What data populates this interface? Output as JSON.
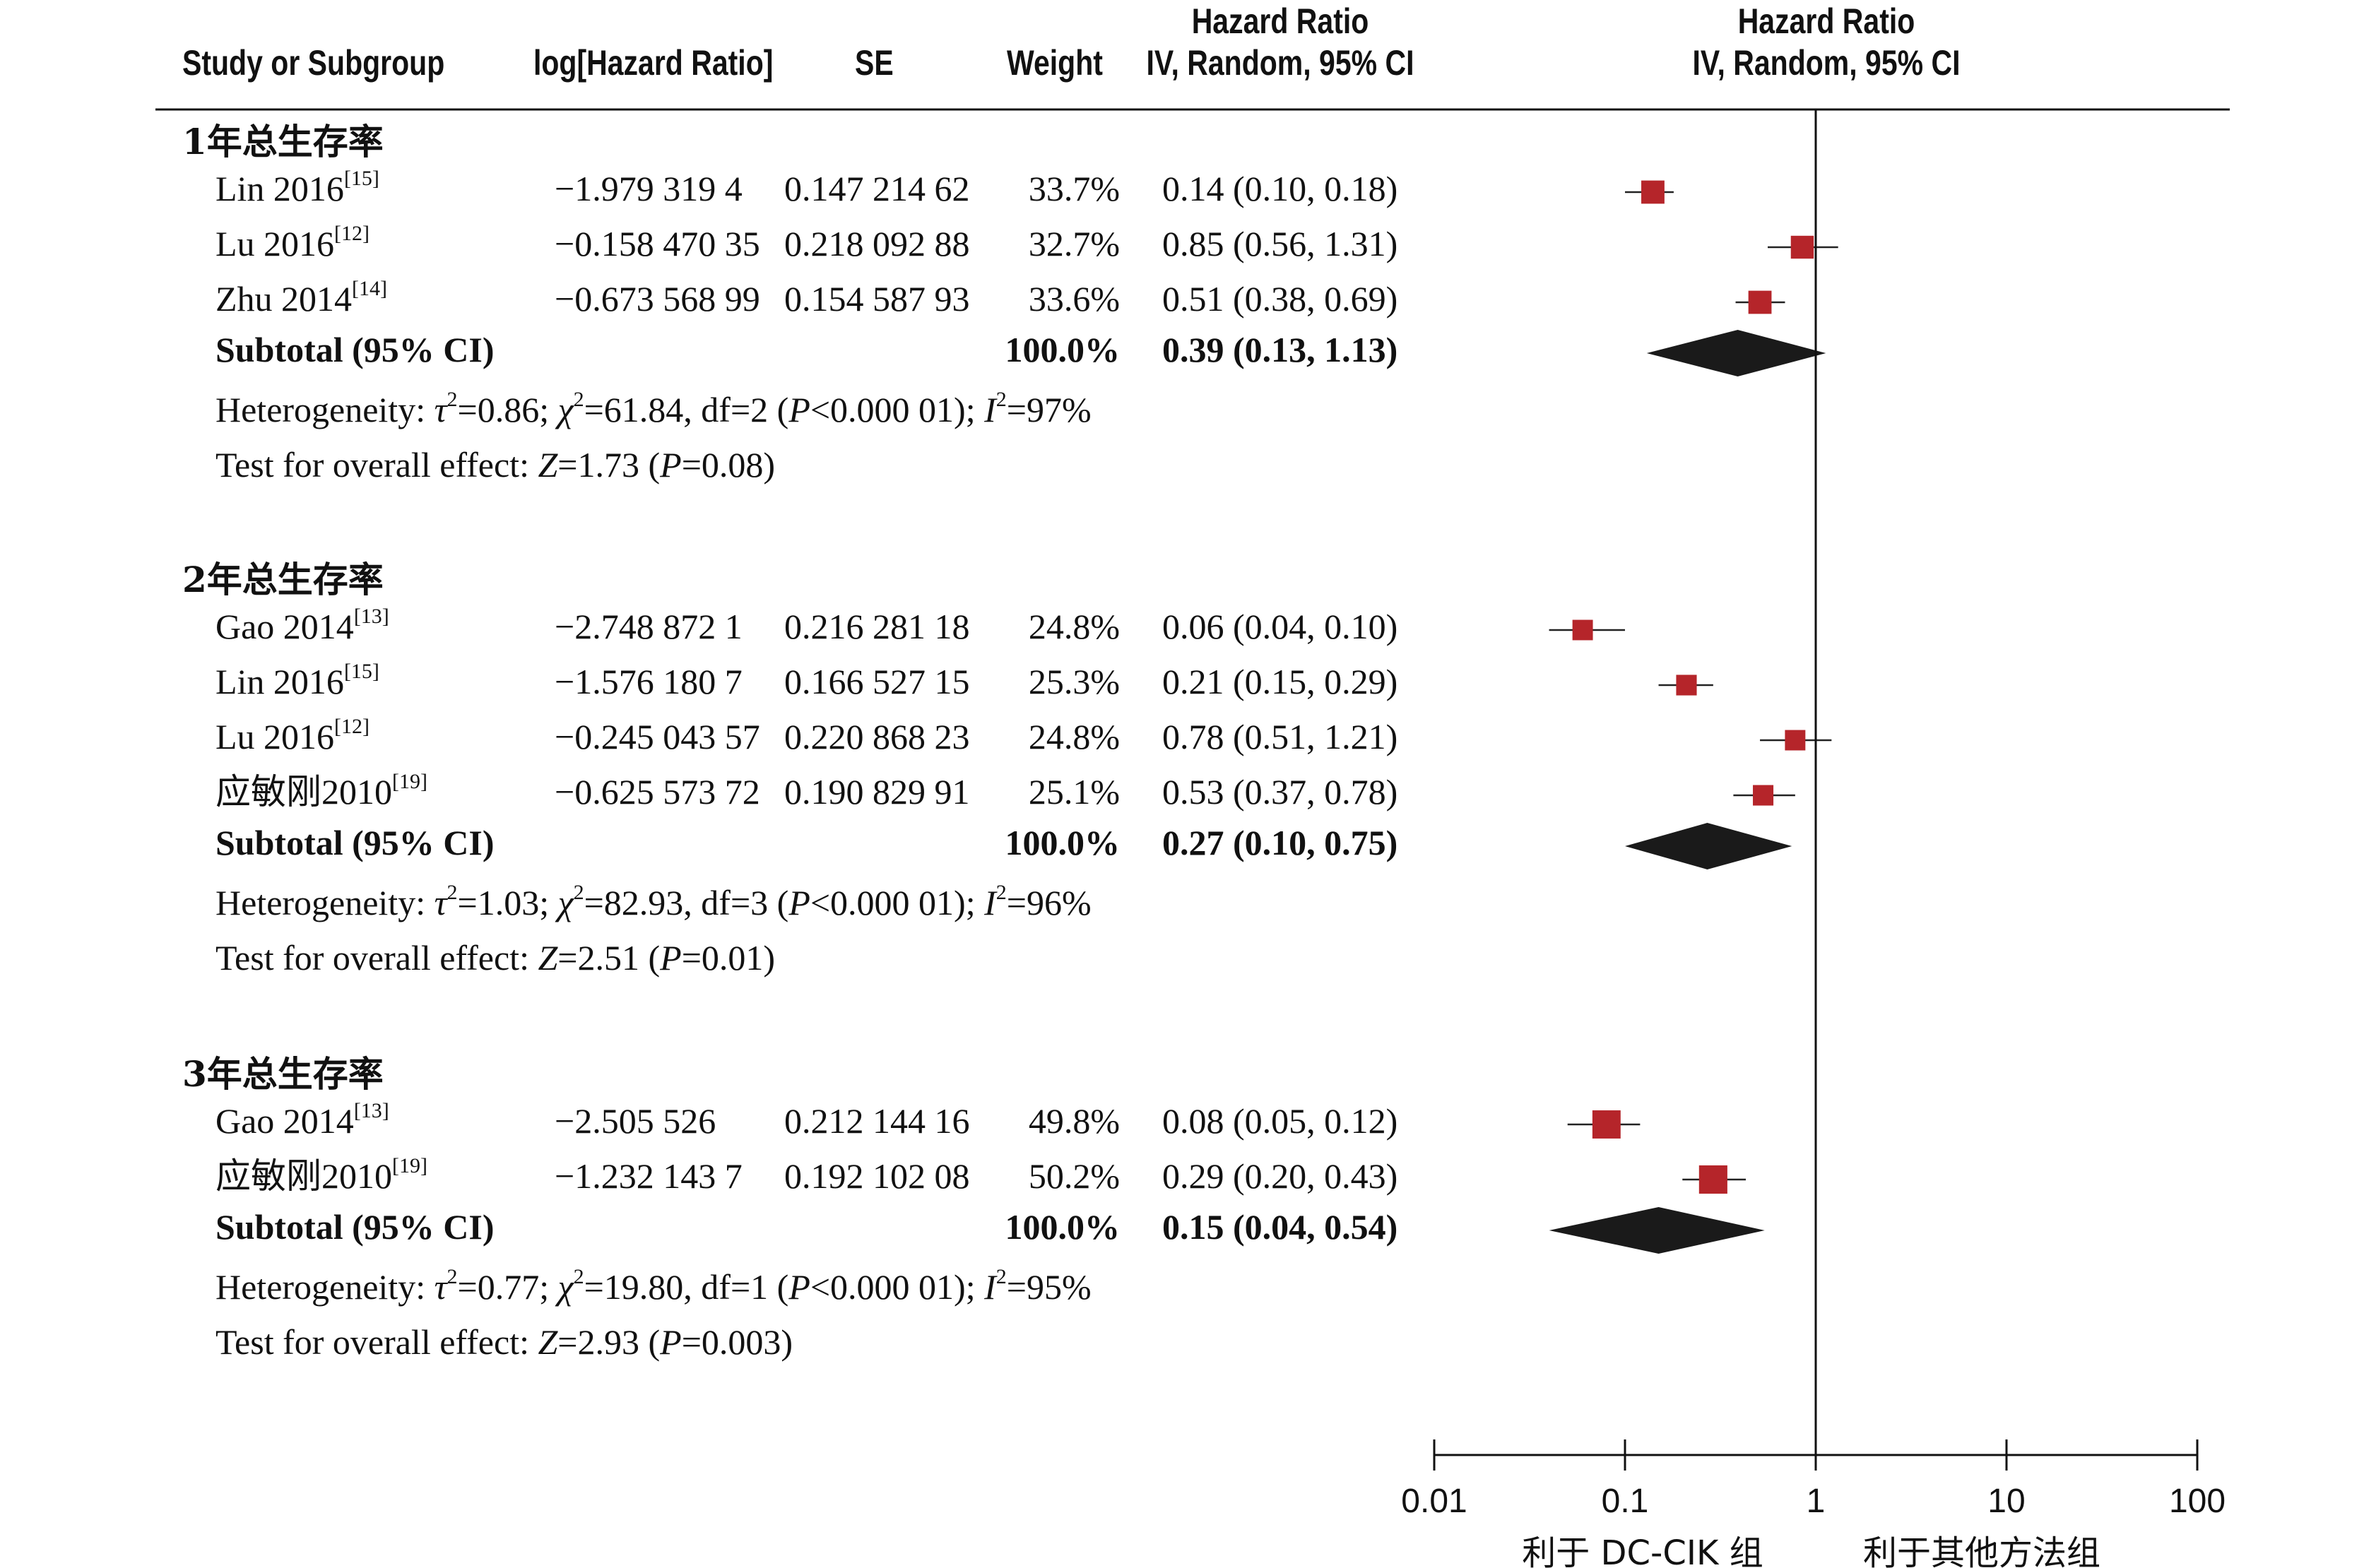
{
  "header": {
    "study_col": "Study or Subgroup",
    "log_hr_col": "log[Hazard Ratio]",
    "se_col": "SE",
    "weight_col": "Weight",
    "hr_col_line1": "Hazard Ratio",
    "hr_col_line2": "IV, Random, 95% CI",
    "plot_col_line1": "Hazard Ratio",
    "plot_col_line2": "IV, Random, 95% CI"
  },
  "chart_data": {
    "type": "forest",
    "x_axis": {
      "scale": "log",
      "ticks": [
        0.01,
        0.1,
        1,
        10,
        100
      ],
      "tick_labels": [
        "0.01",
        "0.1",
        "1",
        "10",
        "100"
      ],
      "reference_line": 1,
      "favours_left": "利于 DC-CIK 组",
      "favours_right": "利于其他方法组"
    },
    "groups": [
      {
        "name": "1年总生存率",
        "studies": [
          {
            "study": "Lin 2016",
            "ref": "[15]",
            "log_hr": "−1.979 319 4",
            "se": "0.147 214 62",
            "weight": "33.7%",
            "ci_text": "0.14 (0.10, 0.18)",
            "hr": 0.14,
            "lo": 0.1,
            "hi": 0.18
          },
          {
            "study": "Lu 2016",
            "ref": "[12]",
            "log_hr": "−0.158 470 35",
            "se": "0.218 092 88",
            "weight": "32.7%",
            "ci_text": "0.85 (0.56, 1.31)",
            "hr": 0.85,
            "lo": 0.56,
            "hi": 1.31
          },
          {
            "study": "Zhu 2014",
            "ref": "[14]",
            "log_hr": "−0.673 568 99",
            "se": "0.154 587 93",
            "weight": "33.6%",
            "ci_text": "0.51 (0.38, 0.69)",
            "hr": 0.51,
            "lo": 0.38,
            "hi": 0.69
          }
        ],
        "subtotal": {
          "label": "Subtotal (95% CI)",
          "weight": "100.0%",
          "ci_text": "0.39 (0.13, 1.13)",
          "hr": 0.39,
          "lo": 0.13,
          "hi": 1.13
        },
        "heterogeneity": {
          "prefix": "Heterogeneity: ",
          "tau2": "=0.86; ",
          "chi2": "=61.84, df=2 (",
          "p": "<0.000 01); ",
          "i2": "=97%"
        },
        "overall": {
          "prefix": "Test for overall effect: ",
          "z": "=1.73 (",
          "p": "=0.08)"
        }
      },
      {
        "name": "2年总生存率",
        "studies": [
          {
            "study": "Gao 2014",
            "ref": "[13]",
            "log_hr": "−2.748 872 1",
            "se": "0.216 281 18",
            "weight": "24.8%",
            "ci_text": "0.06 (0.04, 0.10)",
            "hr": 0.06,
            "lo": 0.04,
            "hi": 0.1
          },
          {
            "study": "Lin 2016",
            "ref": "[15]",
            "log_hr": "−1.576 180 7",
            "se": "0.166 527 15",
            "weight": "25.3%",
            "ci_text": "0.21 (0.15, 0.29)",
            "hr": 0.21,
            "lo": 0.15,
            "hi": 0.29
          },
          {
            "study": "Lu 2016",
            "ref": "[12]",
            "log_hr": "−0.245 043 57",
            "se": "0.220 868 23",
            "weight": "24.8%",
            "ci_text": "0.78 (0.51, 1.21)",
            "hr": 0.78,
            "lo": 0.51,
            "hi": 1.21
          },
          {
            "study": "应敏刚2010",
            "ref": "[19]",
            "log_hr": "−0.625 573 72",
            "se": "0.190 829 91",
            "weight": "25.1%",
            "ci_text": "0.53 (0.37, 0.78)",
            "hr": 0.53,
            "lo": 0.37,
            "hi": 0.78
          }
        ],
        "subtotal": {
          "label": "Subtotal (95% CI)",
          "weight": "100.0%",
          "ci_text": "0.27 (0.10, 0.75)",
          "hr": 0.27,
          "lo": 0.1,
          "hi": 0.75
        },
        "heterogeneity": {
          "prefix": "Heterogeneity: ",
          "tau2": "=1.03; ",
          "chi2": "=82.93, df=3 (",
          "p": "<0.000 01); ",
          "i2": "=96%"
        },
        "overall": {
          "prefix": "Test for overall effect: ",
          "z": "=2.51 (",
          "p": "=0.01)"
        }
      },
      {
        "name": "3年总生存率",
        "studies": [
          {
            "study": "Gao 2014",
            "ref": "[13]",
            "log_hr": "−2.505 526",
            "se": "0.212 144 16",
            "weight": "49.8%",
            "ci_text": "0.08 (0.05, 0.12)",
            "hr": 0.08,
            "lo": 0.05,
            "hi": 0.12
          },
          {
            "study": "应敏刚2010",
            "ref": "[19]",
            "log_hr": "−1.232 143 7",
            "se": "0.192 102 08",
            "weight": "50.2%",
            "ci_text": "0.29 (0.20, 0.43)",
            "hr": 0.29,
            "lo": 0.2,
            "hi": 0.43
          }
        ],
        "subtotal": {
          "label": "Subtotal (95% CI)",
          "weight": "100.0%",
          "ci_text": "0.15 (0.04, 0.54)",
          "hr": 0.15,
          "lo": 0.04,
          "hi": 0.54
        },
        "heterogeneity": {
          "prefix": "Heterogeneity: ",
          "tau2": "=0.77; ",
          "chi2": "=19.80, df=1 (",
          "p": "<0.000 01); ",
          "i2": "=95%"
        },
        "overall": {
          "prefix": "Test for overall effect: ",
          "z": "=2.93 (",
          "p": "=0.003)"
        }
      }
    ],
    "marker_color": "#b5252a",
    "diamond_color": "#1a1a1a"
  }
}
